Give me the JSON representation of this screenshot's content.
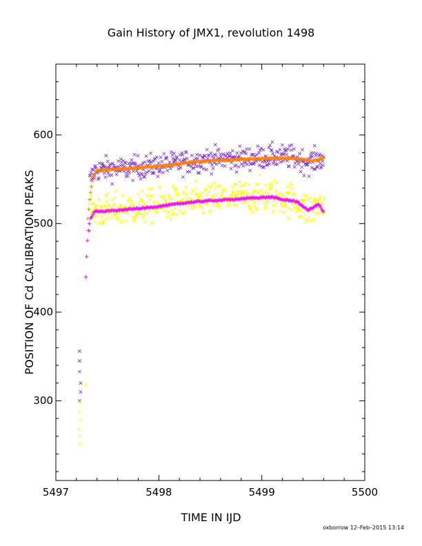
{
  "chart_data": {
    "type": "scatter",
    "title": "Gain History of JMX1, revolution 1498",
    "xlabel": "TIME IN IJD",
    "ylabel": "POSITION OF Cd CALIBRATION PEAKS",
    "xlim": [
      5497,
      5500
    ],
    "ylim": [
      210,
      680
    ],
    "xticks": [
      5497,
      5498,
      5499,
      5500
    ],
    "yticks": [
      300,
      400,
      500,
      600
    ],
    "footer": "oxborrow 12–Feb–2015 13:14",
    "grid": false,
    "series": [
      {
        "marker": "x",
        "color": "#7b2bd6",
        "trend": [
          [
            5497.33,
            548
          ],
          [
            5497.38,
            560
          ],
          [
            5497.5,
            562
          ],
          [
            5497.7,
            562
          ],
          [
            5497.9,
            565
          ],
          [
            5498.1,
            567
          ],
          [
            5498.3,
            570
          ],
          [
            5498.5,
            573
          ],
          [
            5498.7,
            573
          ],
          [
            5498.9,
            574
          ],
          [
            5499.1,
            576
          ],
          [
            5499.3,
            575
          ],
          [
            5499.45,
            569
          ],
          [
            5499.6,
            574
          ]
        ],
        "scatter": 9,
        "outliers": [
          [
            5497.23,
            356
          ],
          [
            5497.23,
            345
          ],
          [
            5497.23,
            333
          ],
          [
            5497.24,
            320
          ],
          [
            5497.24,
            310
          ],
          [
            5497.23,
            300
          ]
        ]
      },
      {
        "marker": "x",
        "color": "#ffff00",
        "trend": [
          [
            5497.33,
            515
          ],
          [
            5497.38,
            515
          ],
          [
            5497.5,
            514
          ],
          [
            5497.7,
            517
          ],
          [
            5497.9,
            519
          ],
          [
            5498.1,
            522
          ],
          [
            5498.3,
            524
          ],
          [
            5498.5,
            527
          ],
          [
            5498.7,
            529
          ],
          [
            5498.9,
            531
          ],
          [
            5499.1,
            532
          ],
          [
            5499.3,
            527
          ],
          [
            5499.45,
            515
          ],
          [
            5499.6,
            522
          ]
        ],
        "scatter": 13,
        "outliers": [
          [
            5497.23,
            298
          ],
          [
            5497.23,
            288
          ],
          [
            5497.24,
            278
          ],
          [
            5497.23,
            268
          ],
          [
            5497.23,
            260
          ],
          [
            5497.23,
            252
          ],
          [
            5497.29,
            318
          ]
        ]
      },
      {
        "marker": "+",
        "color": "#ff00ff",
        "trend": [
          [
            5497.29,
            440
          ],
          [
            5497.3,
            465
          ],
          [
            5497.31,
            485
          ],
          [
            5497.33,
            505
          ],
          [
            5497.38,
            514
          ],
          [
            5497.5,
            514
          ],
          [
            5497.7,
            516
          ],
          [
            5497.9,
            518
          ],
          [
            5498.1,
            521
          ],
          [
            5498.3,
            524
          ],
          [
            5498.5,
            526
          ],
          [
            5498.7,
            527
          ],
          [
            5498.9,
            529
          ],
          [
            5499.1,
            530
          ],
          [
            5499.2,
            527
          ],
          [
            5499.3,
            526
          ],
          [
            5499.35,
            524
          ],
          [
            5499.45,
            515
          ],
          [
            5499.55,
            522
          ],
          [
            5499.6,
            513
          ]
        ],
        "scatter": 1,
        "outliers": []
      },
      {
        "marker": "+",
        "color": "#ff7f00",
        "trend": [
          [
            5497.31,
            505
          ],
          [
            5497.33,
            530
          ],
          [
            5497.36,
            552
          ],
          [
            5497.4,
            560
          ],
          [
            5497.5,
            561
          ],
          [
            5497.7,
            562
          ],
          [
            5497.9,
            564
          ],
          [
            5498.1,
            566
          ],
          [
            5498.3,
            569
          ],
          [
            5498.5,
            571
          ],
          [
            5498.7,
            572
          ],
          [
            5498.9,
            573
          ],
          [
            5499.1,
            574
          ],
          [
            5499.3,
            574
          ],
          [
            5499.4,
            572
          ],
          [
            5499.5,
            571
          ],
          [
            5499.6,
            574
          ]
        ],
        "scatter": 1,
        "outliers": []
      }
    ]
  }
}
